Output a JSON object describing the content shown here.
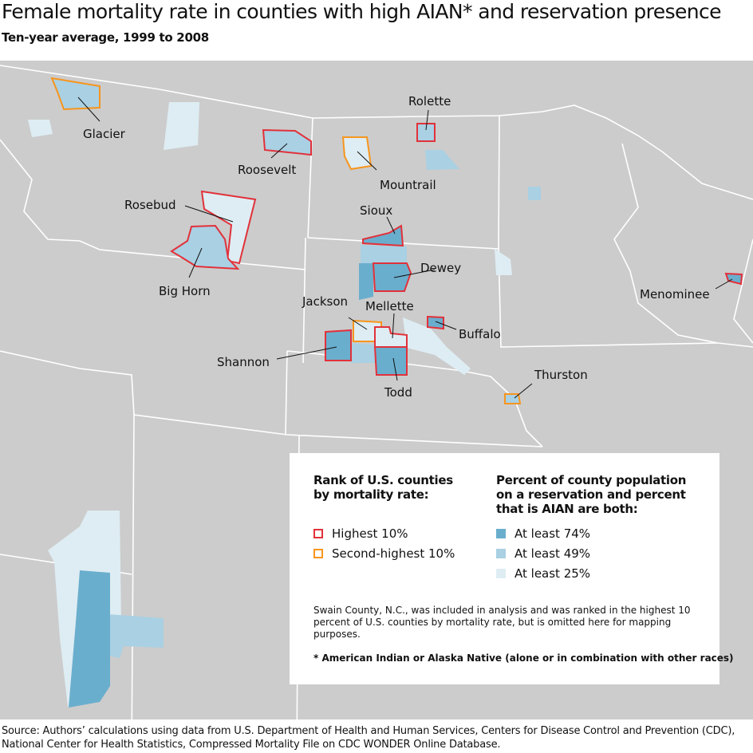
{
  "title": "Female mortality rate in counties with high AIAN* and reservation presence",
  "subtitle": "Ten-year average, 1999 to 2008",
  "colors": {
    "background": "#cccccc",
    "border": "#ffffff",
    "at_least_74": "#6aaecd",
    "at_least_49": "#a9d0e3",
    "at_least_25": "#deedf3",
    "highest_10": "#e2313a",
    "second_highest_10": "#f7951d"
  },
  "counties": [
    {
      "name": "Glacier",
      "rank": "second_highest_10",
      "share": "at_least_49"
    },
    {
      "name": "Rolette",
      "rank": "highest_10",
      "share": "at_least_49"
    },
    {
      "name": "Roosevelt",
      "rank": "highest_10",
      "share": "at_least_49"
    },
    {
      "name": "Mountrail",
      "rank": "second_highest_10",
      "share": "at_least_25"
    },
    {
      "name": "Rosebud",
      "rank": "highest_10",
      "share": "at_least_25"
    },
    {
      "name": "Sioux",
      "rank": "highest_10",
      "share": "at_least_74"
    },
    {
      "name": "Dewey",
      "rank": "highest_10",
      "share": "at_least_74"
    },
    {
      "name": "Big Horn",
      "rank": "highest_10",
      "share": "at_least_49"
    },
    {
      "name": "Menominee",
      "rank": "highest_10",
      "share": "at_least_74"
    },
    {
      "name": "Jackson",
      "rank": "second_highest_10",
      "share": "at_least_25"
    },
    {
      "name": "Mellette",
      "rank": "highest_10",
      "share": "at_least_25"
    },
    {
      "name": "Buffalo",
      "rank": "highest_10",
      "share": "at_least_74"
    },
    {
      "name": "Shannon",
      "rank": "highest_10",
      "share": "at_least_74"
    },
    {
      "name": "Todd",
      "rank": "highest_10",
      "share": "at_least_74"
    },
    {
      "name": "Thurston",
      "rank": "second_highest_10",
      "share": "at_least_49"
    }
  ],
  "legend": {
    "rank_heading": "Rank of U.S. counties by mortality rate:",
    "rank_items": [
      "Highest 10%",
      "Second-highest 10%"
    ],
    "share_heading": "Percent of county population on a reservation and percent that is AIAN are both:",
    "share_items": [
      "At least 74%",
      "At least 49%",
      "At least 25%"
    ],
    "note": "Swain County, N.C., was included in analysis and was ranked in the highest 10 percent of U.S. counties by mortality rate, but is omitted here for mapping purposes.",
    "footnote": "* American Indian or Alaska Native (alone or in combination with other races)"
  },
  "source": "Source: Authors’ calculations using data from U.S. Department of Health and Human Services, Centers for Disease Control and Prevention (CDC), National Center for Health Statistics, Compressed Mortality File on CDC WONDER Online Database."
}
